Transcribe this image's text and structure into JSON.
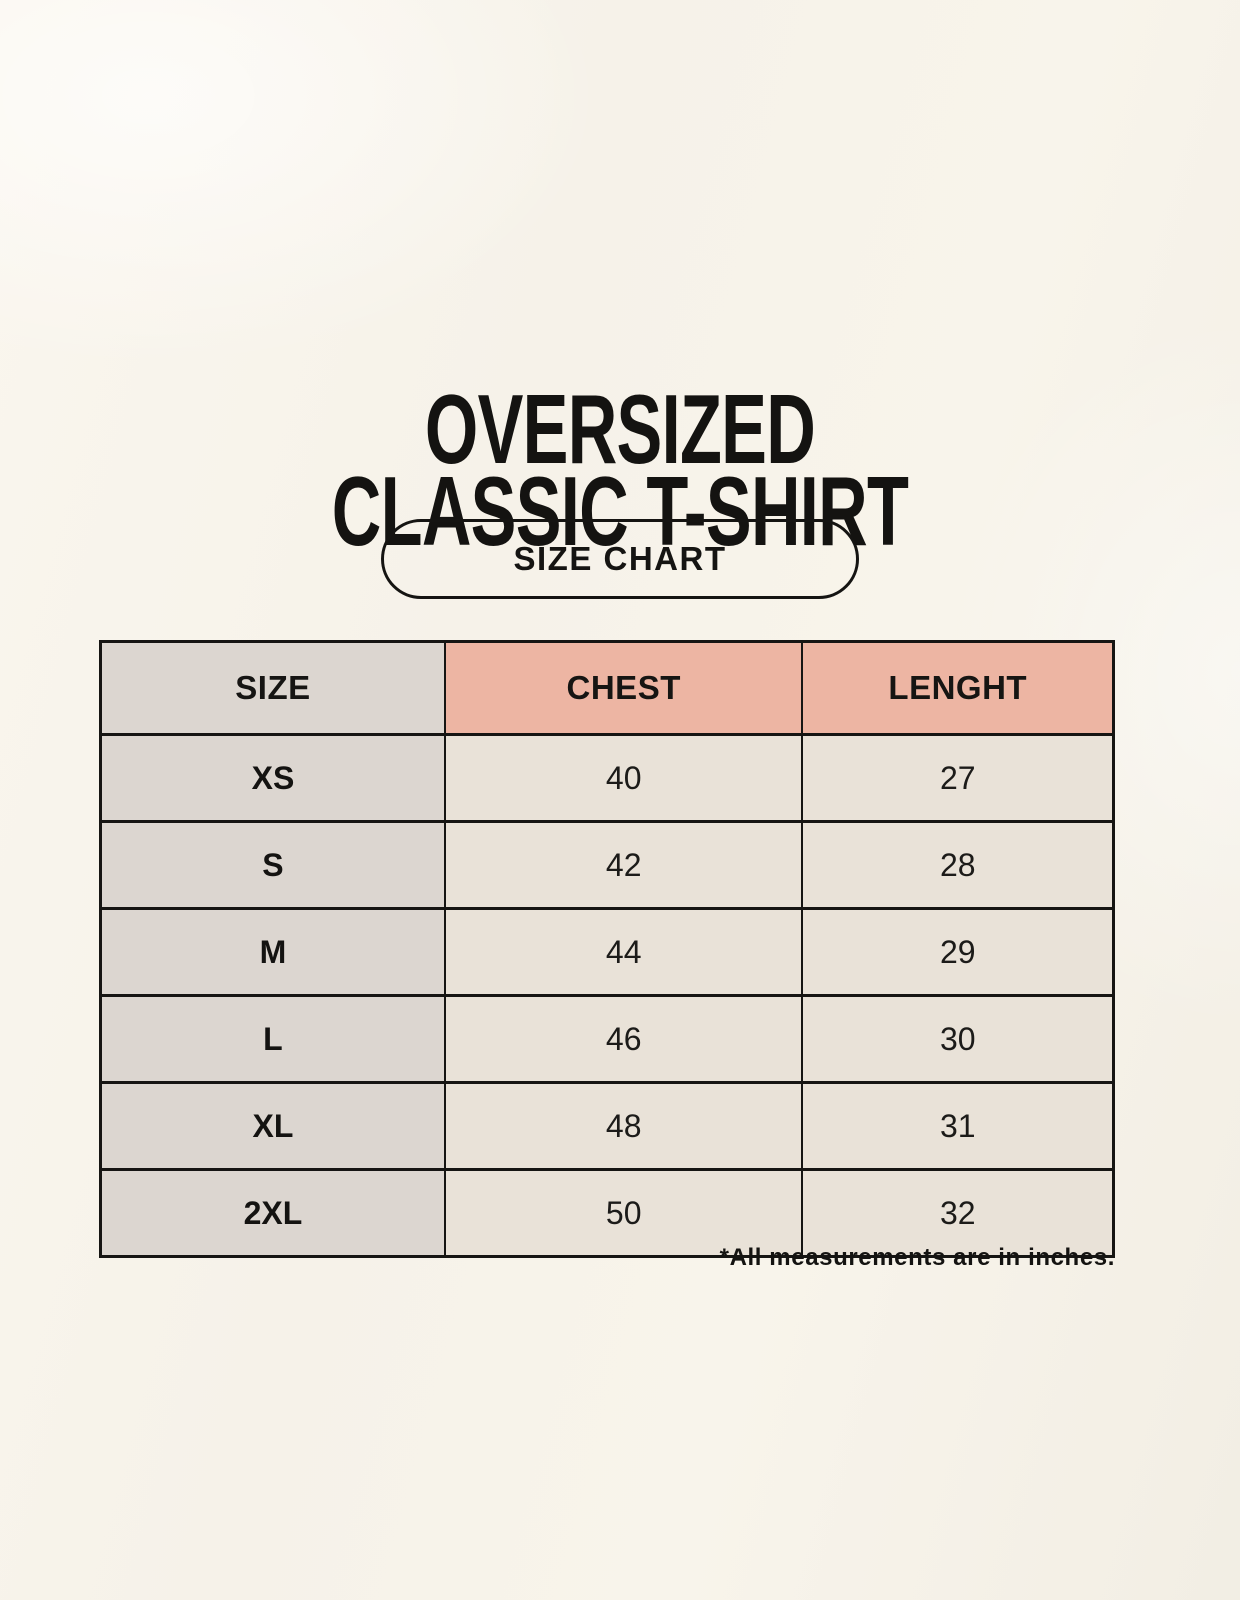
{
  "title": {
    "line1": "OVERSIZED",
    "line2": "CLASSIC T-SHIRT"
  },
  "size_chart_button_label": "SIZE CHART",
  "footnote": "*All measurements are in inches.",
  "colors": {
    "page_background": "#f6f2e9",
    "header_size_bg": "#dcd6d0",
    "header_accent_bg": "#edb5a3",
    "body_size_col_bg": "#dcd6d0",
    "body_cell_bg": "#e9e2d8",
    "text_and_borders": "#161513"
  },
  "chart_data": {
    "type": "table",
    "title": "OVERSIZED CLASSIC T-SHIRT",
    "subtitle": "SIZE CHART",
    "columns": [
      "SIZE",
      "CHEST",
      "LENGHT"
    ],
    "units": "inches",
    "rows": [
      [
        "XS",
        "40",
        "27"
      ],
      [
        "S",
        "42",
        "28"
      ],
      [
        "M",
        "44",
        "29"
      ],
      [
        "L",
        "46",
        "30"
      ],
      [
        "XL",
        "48",
        "31"
      ],
      [
        "2XL",
        "50",
        "32"
      ]
    ],
    "note": "*All measurements are in inches."
  }
}
